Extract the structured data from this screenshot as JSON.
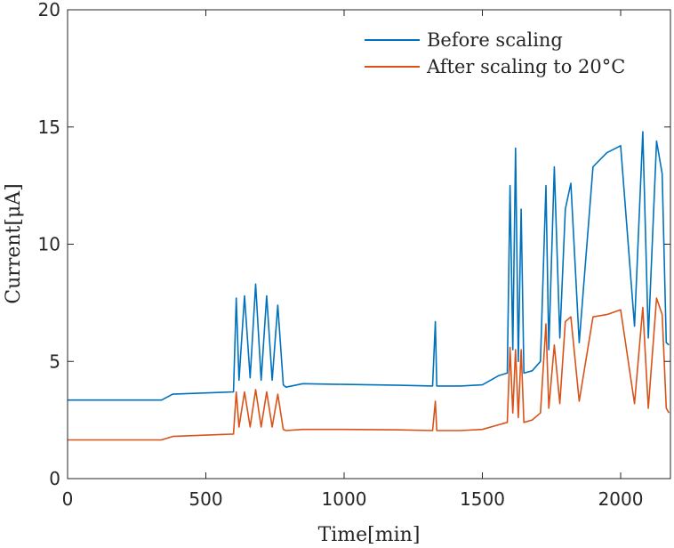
{
  "chart_data": {
    "type": "line",
    "xlabel": "Time[min]",
    "ylabel": "Current[μA]",
    "xlim": [
      0,
      2180
    ],
    "ylim": [
      0,
      20
    ],
    "x_ticks": [
      0,
      500,
      1000,
      1500,
      2000
    ],
    "y_ticks": [
      0,
      5,
      10,
      15,
      20
    ],
    "grid": false,
    "legend_position": "top-right",
    "series": [
      {
        "name": "Before scaling",
        "color": "#0072BD",
        "x": [
          0,
          340,
          380,
          600,
          610,
          620,
          640,
          660,
          680,
          700,
          720,
          740,
          760,
          780,
          790,
          850,
          1000,
          1200,
          1320,
          1330,
          1335,
          1340,
          1420,
          1500,
          1560,
          1590,
          1600,
          1610,
          1620,
          1630,
          1640,
          1650,
          1680,
          1710,
          1730,
          1740,
          1760,
          1780,
          1800,
          1820,
          1850,
          1900,
          1950,
          2000,
          2050,
          2080,
          2100,
          2130,
          2150,
          2165,
          2175
        ],
        "y": [
          3.35,
          3.35,
          3.6,
          3.7,
          7.7,
          4.2,
          7.8,
          4.3,
          8.3,
          4.2,
          7.8,
          4.2,
          7.4,
          4.0,
          3.9,
          4.05,
          4.02,
          3.98,
          3.95,
          6.7,
          3.95,
          3.95,
          3.95,
          4.0,
          4.4,
          4.5,
          12.5,
          5.5,
          14.1,
          5.0,
          11.5,
          4.5,
          4.6,
          5.0,
          12.5,
          5.5,
          13.3,
          6.0,
          11.5,
          12.6,
          5.8,
          13.3,
          13.9,
          14.2,
          6.5,
          14.8,
          6.0,
          14.4,
          13.0,
          5.8,
          5.7
        ]
      },
      {
        "name": "After scaling to 20°C",
        "color": "#D95319",
        "x": [
          0,
          340,
          380,
          600,
          610,
          620,
          640,
          660,
          680,
          700,
          720,
          740,
          760,
          780,
          790,
          850,
          1000,
          1200,
          1320,
          1330,
          1335,
          1340,
          1420,
          1500,
          1560,
          1590,
          1600,
          1610,
          1620,
          1630,
          1640,
          1650,
          1680,
          1710,
          1730,
          1740,
          1760,
          1780,
          1800,
          1820,
          1850,
          1900,
          1950,
          2000,
          2050,
          2080,
          2100,
          2130,
          2150,
          2165,
          2175
        ],
        "y": [
          1.65,
          1.65,
          1.8,
          1.9,
          3.7,
          2.2,
          3.7,
          2.2,
          3.8,
          2.2,
          3.7,
          2.2,
          3.6,
          2.1,
          2.05,
          2.1,
          2.1,
          2.08,
          2.05,
          3.3,
          2.05,
          2.05,
          2.05,
          2.1,
          2.3,
          2.4,
          5.6,
          2.8,
          5.5,
          2.6,
          5.5,
          2.4,
          2.5,
          2.8,
          6.6,
          3.0,
          5.7,
          3.2,
          6.7,
          6.9,
          3.3,
          6.9,
          7.0,
          7.2,
          3.2,
          7.3,
          3.0,
          7.7,
          7.0,
          3.0,
          2.8
        ]
      }
    ]
  }
}
